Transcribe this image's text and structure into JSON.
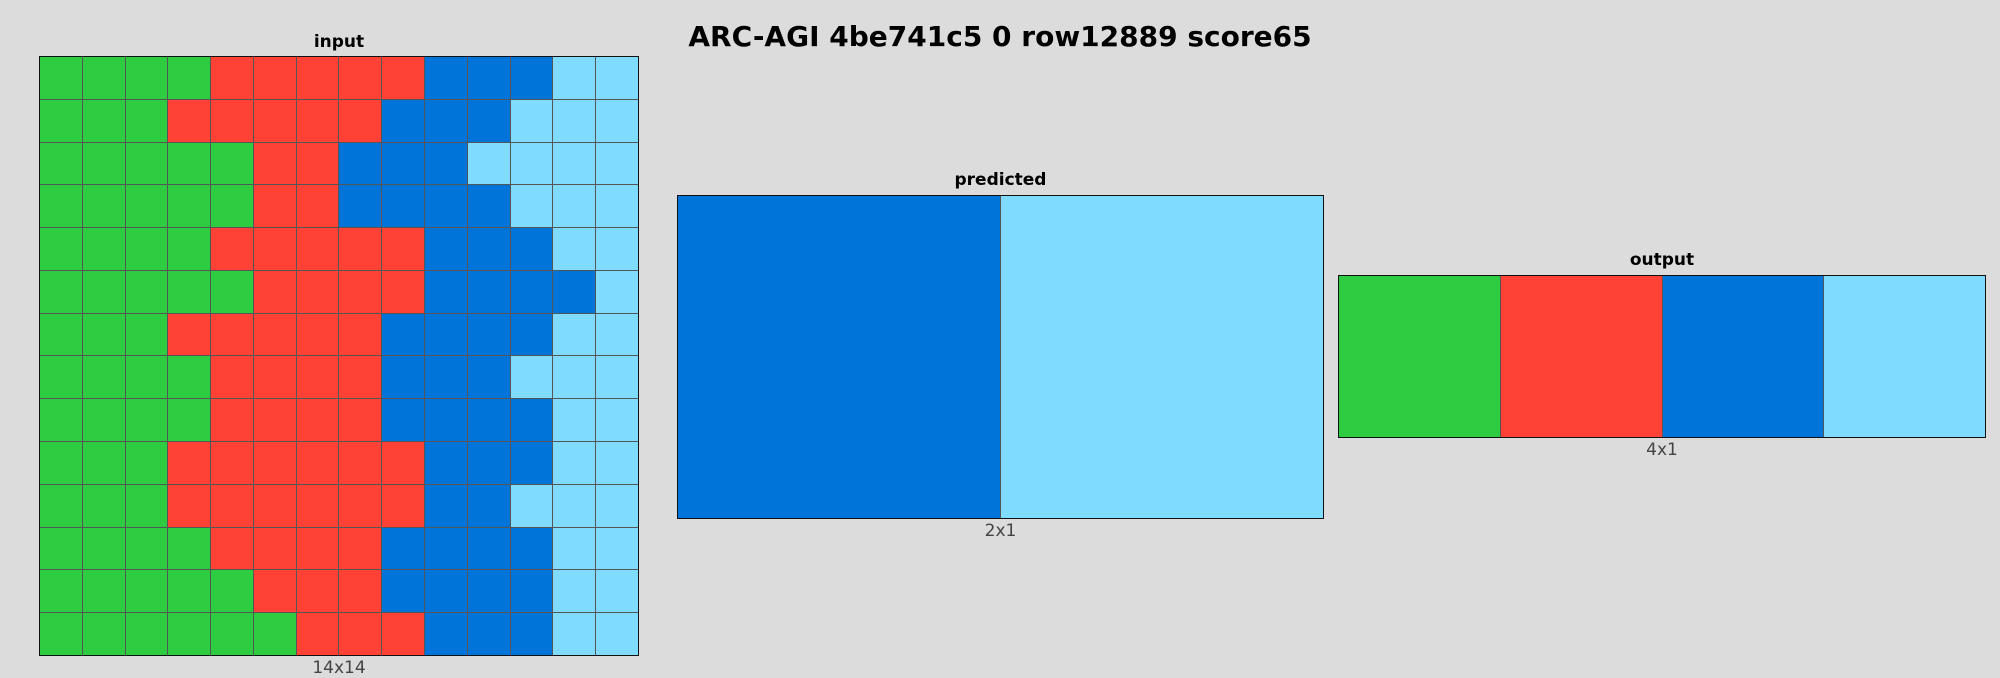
{
  "title": "ARC-AGI 4be741c5 0 row12889 score65",
  "palette": {
    "2": "#ff4136",
    "3": "#2ecc40",
    "1": "#0074d9",
    "8": "#7fdbff"
  },
  "panels": [
    {
      "id": "input",
      "label": "input",
      "size_label": "14x14",
      "rows": [
        [
          3,
          3,
          3,
          3,
          2,
          2,
          2,
          2,
          2,
          1,
          1,
          1,
          8,
          8
        ],
        [
          3,
          3,
          3,
          2,
          2,
          2,
          2,
          2,
          1,
          1,
          1,
          8,
          8,
          8
        ],
        [
          3,
          3,
          3,
          3,
          3,
          2,
          2,
          1,
          1,
          1,
          8,
          8,
          8,
          8
        ],
        [
          3,
          3,
          3,
          3,
          3,
          2,
          2,
          1,
          1,
          1,
          1,
          8,
          8,
          8
        ],
        [
          3,
          3,
          3,
          3,
          2,
          2,
          2,
          2,
          2,
          1,
          1,
          1,
          8,
          8
        ],
        [
          3,
          3,
          3,
          3,
          3,
          2,
          2,
          2,
          2,
          1,
          1,
          1,
          1,
          8
        ],
        [
          3,
          3,
          3,
          2,
          2,
          2,
          2,
          2,
          1,
          1,
          1,
          1,
          8,
          8
        ],
        [
          3,
          3,
          3,
          3,
          2,
          2,
          2,
          2,
          1,
          1,
          1,
          8,
          8,
          8
        ],
        [
          3,
          3,
          3,
          3,
          2,
          2,
          2,
          2,
          1,
          1,
          1,
          1,
          8,
          8
        ],
        [
          3,
          3,
          3,
          2,
          2,
          2,
          2,
          2,
          2,
          1,
          1,
          1,
          8,
          8
        ],
        [
          3,
          3,
          3,
          2,
          2,
          2,
          2,
          2,
          2,
          1,
          1,
          8,
          8,
          8
        ],
        [
          3,
          3,
          3,
          3,
          2,
          2,
          2,
          2,
          1,
          1,
          1,
          1,
          8,
          8
        ],
        [
          3,
          3,
          3,
          3,
          3,
          2,
          2,
          2,
          1,
          1,
          1,
          1,
          8,
          8
        ],
        [
          3,
          3,
          3,
          3,
          3,
          3,
          2,
          2,
          2,
          1,
          1,
          1,
          8,
          8
        ]
      ]
    },
    {
      "id": "predicted",
      "label": "predicted",
      "size_label": "2x1",
      "rows": [
        [
          1,
          8
        ]
      ]
    },
    {
      "id": "output",
      "label": "output",
      "size_label": "4x1",
      "rows": [
        [
          3,
          2,
          1,
          8
        ]
      ]
    }
  ]
}
